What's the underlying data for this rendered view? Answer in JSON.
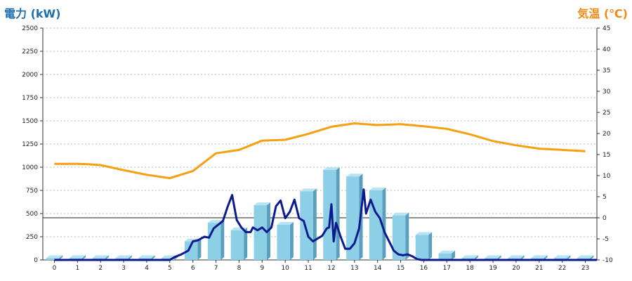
{
  "chart_data": {
    "type": "bar",
    "left_axis_label": "電力 (kW)",
    "right_axis_label": "気温 (℃)",
    "x_categories": [
      "0",
      "1",
      "2",
      "3",
      "4",
      "5",
      "6",
      "7",
      "8",
      "9",
      "10",
      "11",
      "12",
      "13",
      "14",
      "15",
      "16",
      "17",
      "18",
      "19",
      "20",
      "21",
      "22",
      "23"
    ],
    "left_ticks": [
      "0",
      "250",
      "500",
      "750",
      "1000",
      "1250",
      "1500",
      "1750",
      "2000",
      "2250",
      "2500"
    ],
    "right_ticks": [
      "-10",
      "-5",
      "0",
      "5",
      "10",
      "15",
      "20",
      "25",
      "30",
      "35",
      "40",
      "45"
    ],
    "ylim_left": [
      0,
      2500
    ],
    "ylim_right": [
      -10,
      45
    ],
    "grid": "horizontal dotted",
    "colors": {
      "bars": "#8ecfe8",
      "bar_side": "#5a9fbd",
      "power_line": "#0b1a8c",
      "temperature_line": "#f5a00f",
      "left_title": "#1d6fb0",
      "right_title": "#f08a16"
    },
    "series": [
      {
        "type": "bar",
        "axis": "left",
        "values": [
          20,
          20,
          20,
          20,
          20,
          20,
          200,
          400,
          320,
          590,
          380,
          740,
          970,
          900,
          750,
          480,
          270,
          70,
          20,
          20,
          20,
          20,
          20,
          20
        ]
      },
      {
        "type": "line",
        "axis": "left",
        "x": [
          0,
          4,
          5.0,
          5.2,
          5.5,
          5.8,
          6.0,
          6.2,
          6.5,
          6.7,
          6.9,
          7.1,
          7.3,
          7.5,
          7.7,
          7.9,
          8.1,
          8.3,
          8.5,
          8.6,
          8.8,
          9.0,
          9.2,
          9.4,
          9.6,
          9.8,
          10.0,
          10.2,
          10.4,
          10.6,
          10.8,
          11.0,
          11.2,
          11.4,
          11.6,
          11.8,
          11.9,
          12.0,
          12.1,
          12.2,
          12.4,
          12.6,
          12.8,
          13.0,
          13.2,
          13.4,
          13.5,
          13.7,
          13.9,
          14.1,
          14.3,
          14.5,
          14.7,
          14.9,
          15.1,
          15.3,
          15.5,
          15.7,
          15.9,
          16.1,
          16.3,
          16.5,
          16.7,
          16.9,
          17.1,
          17.3,
          23.5
        ],
        "values": [
          0,
          0,
          0,
          30,
          60,
          100,
          200,
          210,
          250,
          240,
          340,
          380,
          420,
          570,
          700,
          430,
          350,
          300,
          300,
          350,
          320,
          350,
          300,
          350,
          580,
          640,
          450,
          520,
          650,
          450,
          420,
          250,
          200,
          230,
          260,
          340,
          350,
          600,
          200,
          400,
          250,
          120,
          120,
          180,
          340,
          760,
          500,
          650,
          520,
          450,
          300,
          200,
          100,
          60,
          50,
          60,
          40,
          10,
          0,
          0,
          0,
          0,
          0,
          0,
          0,
          0,
          0
        ]
      },
      {
        "type": "line",
        "axis": "right",
        "x": [
          0,
          1,
          1.5,
          2,
          3,
          4,
          5,
          6,
          7,
          8,
          9,
          10,
          11,
          12,
          13,
          14,
          15,
          16,
          17,
          18,
          19,
          20,
          21,
          22,
          23
        ],
        "values": [
          12.8,
          12.8,
          12.7,
          12.5,
          11.3,
          10.2,
          9.4,
          11.1,
          15.3,
          16.1,
          18.3,
          18.5,
          19.9,
          21.6,
          22.4,
          22.0,
          22.2,
          21.7,
          21.1,
          19.8,
          18.2,
          17.2,
          16.4,
          16.1,
          15.8
        ]
      }
    ]
  }
}
